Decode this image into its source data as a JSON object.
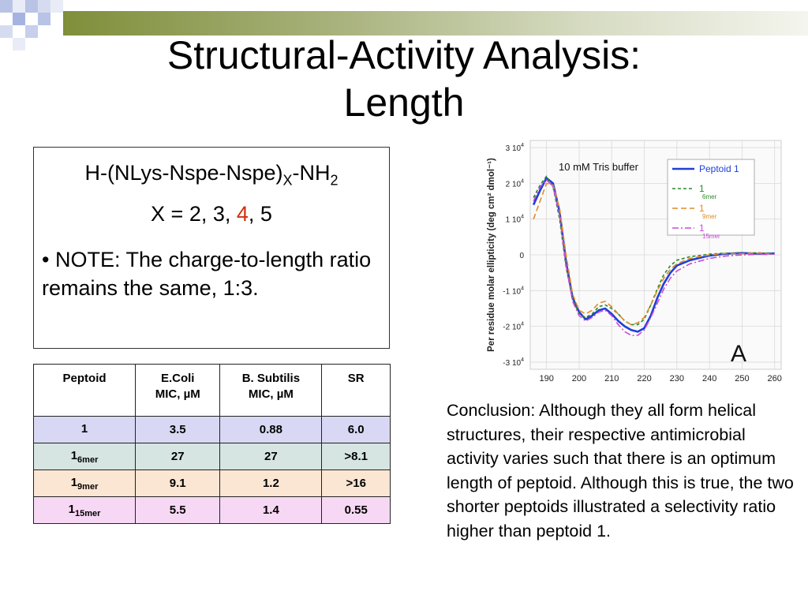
{
  "slide": {
    "title_line1": "Structural-Activity Analysis:",
    "title_line2": "Length",
    "formula": {
      "prefix": "H-(NLys-Nspe-Nspe)",
      "sub": "X",
      "mid": "-NH",
      "sub2": "2"
    },
    "x_values": {
      "label": "X = 2, 3, ",
      "highlight": "4",
      "rest": ", 5"
    },
    "note": "• NOTE:  The charge-to-length ratio remains the same, 1:3.",
    "conclusion": "Conclusion: Although they all form helical structures, their respective antimicrobial activity varies such that there is an optimum length of peptoid. Although this is true, the two shorter peptoids illustrated a selectivity ratio higher than peptoid 1.",
    "accent_color": "#d02f10"
  },
  "table": {
    "headers": [
      {
        "line1": "Peptoid",
        "line2": ""
      },
      {
        "line1": "E.Coli",
        "line2": "MIC, µM"
      },
      {
        "line1": "B. Subtilis",
        "line2": "MIC, µM"
      },
      {
        "line1": "SR",
        "line2": ""
      }
    ],
    "rows": [
      {
        "peptoid": "1",
        "sub": "",
        "ecoli": "3.5",
        "bsub": "0.88",
        "sr": "6.0"
      },
      {
        "peptoid": "1",
        "sub": "6mer",
        "ecoli": "27",
        "bsub": "27",
        "sr": ">8.1"
      },
      {
        "peptoid": "1",
        "sub": "9mer",
        "ecoli": "9.1",
        "bsub": "1.2",
        "sr": ">16"
      },
      {
        "peptoid": "1",
        "sub": "15mer",
        "ecoli": "5.5",
        "bsub": "1.4",
        "sr": "0.55"
      }
    ],
    "row_colors": [
      "#d8d8f4",
      "#d6e5e2",
      "#fbe6d3",
      "#f7d8f4"
    ]
  },
  "chart_data": {
    "type": "line",
    "annotation": "10 mM Tris buffer",
    "panel_label": "A",
    "ylabel": "Per residue molar ellipticity (deg cm² dmol⁻¹)",
    "xlabel": "",
    "xlim": [
      185,
      262
    ],
    "ylim": [
      -32000,
      32000
    ],
    "x_ticks": [
      "190",
      "200",
      "210",
      "220",
      "230",
      "240",
      "250",
      "260"
    ],
    "x_tick_values": [
      190,
      200,
      210,
      220,
      230,
      240,
      250,
      260
    ],
    "y_ticks": [
      {
        "value": 30000,
        "label": "3 10",
        "exp": "4"
      },
      {
        "value": 20000,
        "label": "2 10",
        "exp": "4"
      },
      {
        "value": 10000,
        "label": "1 10",
        "exp": "4"
      },
      {
        "value": 0,
        "label": "0",
        "exp": ""
      },
      {
        "value": -10000,
        "label": "-1 10",
        "exp": "4"
      },
      {
        "value": -20000,
        "label": "-2 10",
        "exp": "4"
      },
      {
        "value": -30000,
        "label": "-3 10",
        "exp": "4"
      }
    ],
    "grid": true,
    "legend_position": "top-right",
    "series": [
      {
        "name": "Peptoid 1",
        "sub": "",
        "color": "#1f3fd8",
        "dash": "",
        "x": [
          186,
          188,
          190,
          192,
          194,
          196,
          198,
          200,
          202,
          204,
          206,
          208,
          210,
          212,
          214,
          216,
          218,
          220,
          222,
          224,
          226,
          228,
          230,
          234,
          240,
          245,
          250,
          255,
          260
        ],
        "y": [
          14000,
          18000,
          21500,
          20000,
          12000,
          -2000,
          -12000,
          -16000,
          -18000,
          -17000,
          -15500,
          -15000,
          -16500,
          -18500,
          -20000,
          -21000,
          -21500,
          -20500,
          -17000,
          -12000,
          -8000,
          -5000,
          -3000,
          -1500,
          -200,
          300,
          500,
          300,
          400
        ]
      },
      {
        "name": "1",
        "sub": "6mer",
        "color": "#2a8a2a",
        "dash": "4,3",
        "x": [
          186,
          188,
          190,
          192,
          194,
          196,
          198,
          200,
          202,
          204,
          206,
          208,
          210,
          212,
          214,
          216,
          218,
          220,
          222,
          224,
          226,
          228,
          230,
          234,
          240,
          245,
          250,
          255,
          260
        ],
        "y": [
          16000,
          19500,
          22000,
          19000,
          10000,
          -3500,
          -12500,
          -16500,
          -17500,
          -16500,
          -14500,
          -14000,
          -15000,
          -16500,
          -18500,
          -19500,
          -19500,
          -18000,
          -14000,
          -9500,
          -5500,
          -3000,
          -1500,
          -500,
          200,
          500,
          400,
          600,
          300
        ]
      },
      {
        "name": "1",
        "sub": "9mer",
        "color": "#e08a2a",
        "dash": "7,4",
        "x": [
          186,
          188,
          190,
          192,
          194,
          196,
          198,
          200,
          202,
          204,
          206,
          208,
          210,
          212,
          214,
          216,
          218,
          220,
          222,
          224,
          226,
          228,
          230,
          234,
          240,
          245,
          250,
          255,
          260
        ],
        "y": [
          10000,
          15000,
          20000,
          19500,
          13000,
          0,
          -11000,
          -15500,
          -16500,
          -15500,
          -13500,
          -13000,
          -14500,
          -16500,
          -18500,
          -19500,
          -19000,
          -17500,
          -14000,
          -10000,
          -6500,
          -4000,
          -2500,
          -1000,
          0,
          400,
          300,
          500,
          200
        ]
      },
      {
        "name": "1",
        "sub": "15mer",
        "color": "#c84bd8",
        "dash": "8,3,2,3",
        "x": [
          186,
          188,
          190,
          192,
          194,
          196,
          198,
          200,
          202,
          204,
          206,
          208,
          210,
          212,
          214,
          216,
          218,
          220,
          222,
          224,
          226,
          228,
          230,
          234,
          240,
          245,
          250,
          255,
          260
        ],
        "y": [
          15000,
          19000,
          21000,
          19000,
          11000,
          -3000,
          -13000,
          -17000,
          -18500,
          -17500,
          -16000,
          -15500,
          -17000,
          -19500,
          -21500,
          -22500,
          -22500,
          -21000,
          -17500,
          -13500,
          -9500,
          -6500,
          -4500,
          -2500,
          -1000,
          -300,
          0,
          100,
          200
        ]
      }
    ]
  }
}
